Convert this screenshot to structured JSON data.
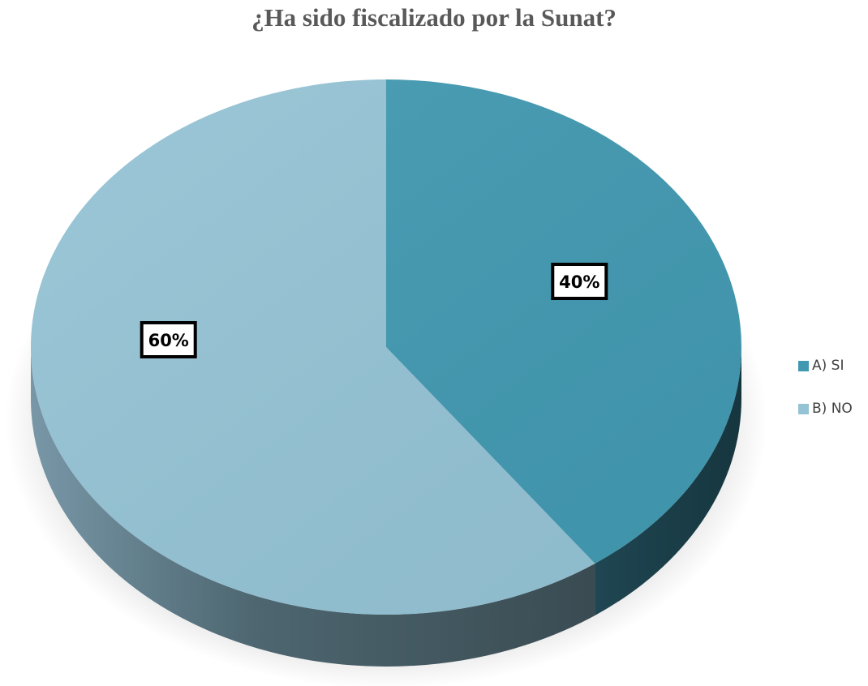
{
  "chart_data": {
    "type": "pie",
    "title": "¿Ha sido fiscalizado por la Sunat?",
    "categories": [
      "A) SI",
      "B) NO"
    ],
    "values": [
      40,
      60
    ],
    "labels": [
      "40%",
      "60%"
    ],
    "colors": [
      "#4199B1",
      "#94C3D5"
    ],
    "legend_position": "right",
    "style": "3d"
  }
}
